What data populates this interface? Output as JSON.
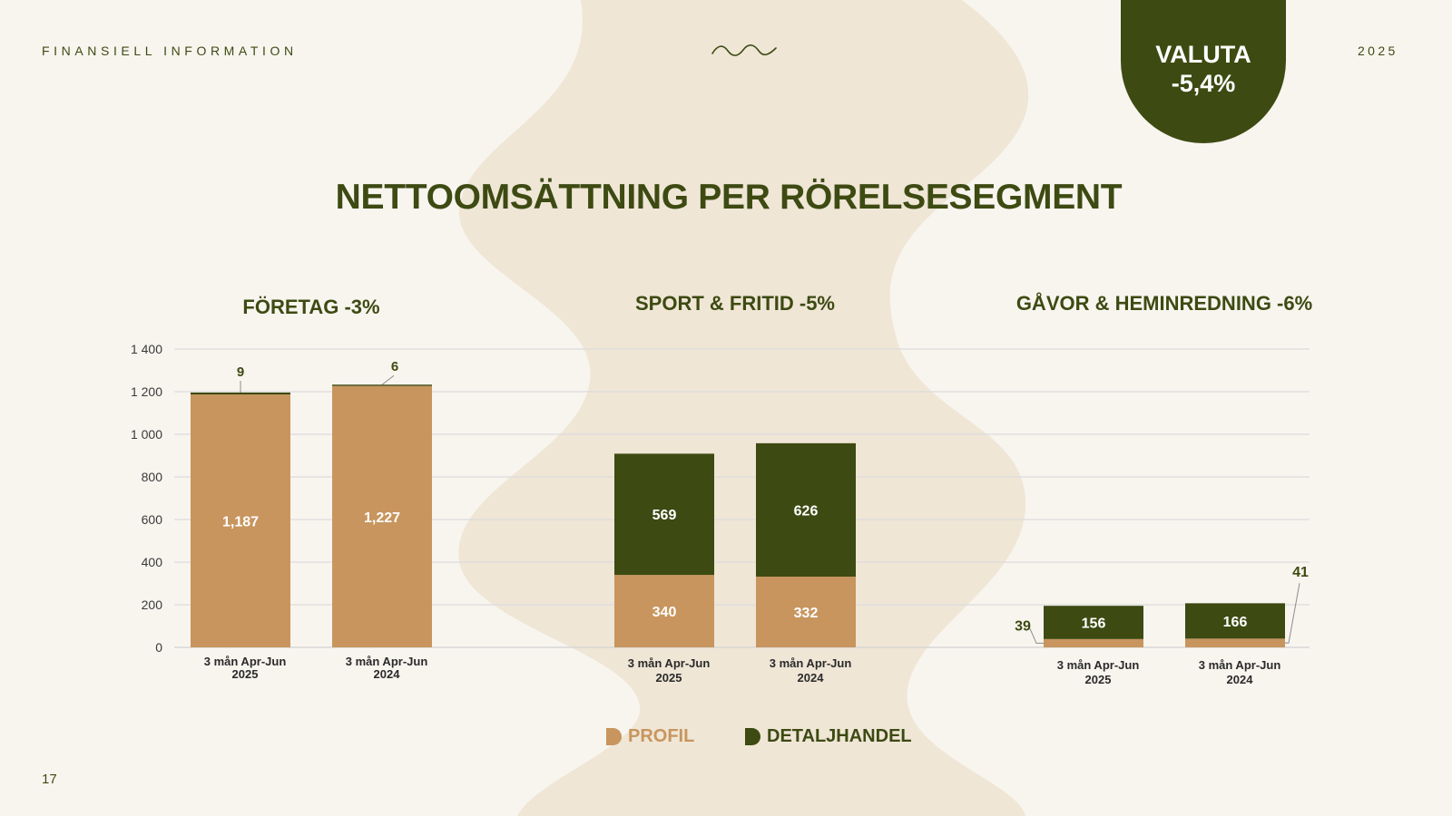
{
  "header": {
    "section_label": "FINANSIELL INFORMATION",
    "year": "2025"
  },
  "badge": {
    "title": "VALUTA",
    "value": "-5,4%"
  },
  "title": "NETTOOMSÄTTNING PER RÖRELSESEGMENT",
  "page_number": "17",
  "colors": {
    "profil": "#c8955e",
    "detaljhandel": "#3d4a12",
    "text_dark": "#3d4a12",
    "background": "#f8f5ef",
    "wave": "#efe6d6"
  },
  "legend": [
    {
      "label": "PROFIL",
      "color": "#c8955e"
    },
    {
      "label": "DETALJHANDEL",
      "color": "#3d4a12"
    }
  ],
  "chart_data": {
    "type": "bar",
    "stacked": true,
    "ylim": [
      0,
      1400
    ],
    "yticks": [
      "0",
      "200",
      "400",
      "600",
      "800",
      "1 000",
      "1 200",
      "1 400"
    ],
    "grid": true,
    "legend_position": "bottom",
    "groups": [
      {
        "title": "FÖRETAG -3%",
        "categories": [
          "3 mån Apr-Jun 2025",
          "3 mån Apr-Jun 2024"
        ],
        "series": [
          {
            "name": "PROFIL",
            "values": [
              1187,
              1227
            ],
            "labels": [
              "1,187",
              "1,227"
            ]
          },
          {
            "name": "DETALJHANDEL",
            "values": [
              9,
              6
            ],
            "labels": [
              "9",
              "6"
            ]
          }
        ]
      },
      {
        "title": "SPORT & FRITID -5%",
        "categories": [
          "3 mån Apr-Jun 2025",
          "3 mån Apr-Jun 2024"
        ],
        "series": [
          {
            "name": "PROFIL",
            "values": [
              340,
              332
            ],
            "labels": [
              "340",
              "332"
            ]
          },
          {
            "name": "DETALJHANDEL",
            "values": [
              569,
              626
            ],
            "labels": [
              "569",
              "626"
            ]
          }
        ]
      },
      {
        "title": "GÅVOR & HEMINREDNING -6%",
        "categories": [
          "3 mån Apr-Jun 2025",
          "3 mån Apr-Jun 2024"
        ],
        "series": [
          {
            "name": "PROFIL",
            "values": [
              39,
              41
            ],
            "labels": [
              "39",
              "41"
            ]
          },
          {
            "name": "DETALJHANDEL",
            "values": [
              156,
              166
            ],
            "labels": [
              "156",
              "166"
            ]
          }
        ]
      }
    ]
  }
}
